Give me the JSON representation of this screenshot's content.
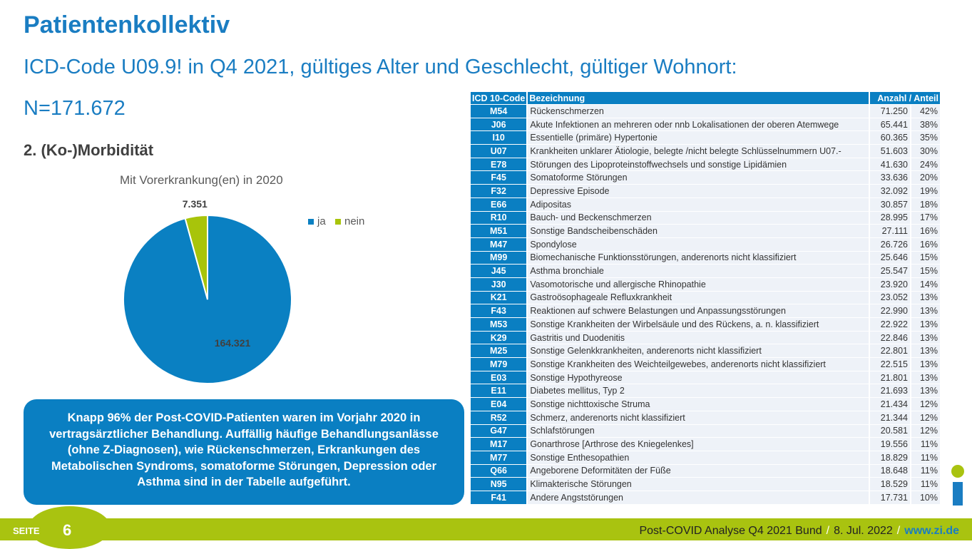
{
  "title": "Patientenkollektiv",
  "subtitle": "ICD-Code U09.9! in Q4 2021, gültiges Alter und Geschlecht, gültiger Wohnort:",
  "n_text": "N=171.672",
  "section": "2. (Ko-)Morbidität",
  "chart_data": {
    "type": "pie",
    "title": "Mit Vorerkrankung(en) in 2020",
    "categories": [
      "ja",
      "nein"
    ],
    "values": [
      164321,
      7351
    ],
    "labels": [
      "164.321",
      "7.351"
    ],
    "colors": [
      "#0a80c2",
      "#a8c40a"
    ],
    "legend": "top-right"
  },
  "table": {
    "headers": [
      "ICD 10-Code",
      "Bezeichnung",
      "Anzahl / Anteil"
    ],
    "rows": [
      [
        "M54",
        "Rückenschmerzen",
        "71.250",
        "42%"
      ],
      [
        "J06",
        "Akute Infektionen an mehreren oder nnb Lokalisationen der oberen Atemwege",
        "65.441",
        "38%"
      ],
      [
        "I10",
        "Essentielle (primäre) Hypertonie",
        "60.365",
        "35%"
      ],
      [
        "U07",
        "Krankheiten unklarer Ätiologie, belegte /nicht belegte Schlüsselnummern U07.-",
        "51.603",
        "30%"
      ],
      [
        "E78",
        "Störungen des Lipoproteinstoffwechsels und sonstige Lipidämien",
        "41.630",
        "24%"
      ],
      [
        "F45",
        "Somatoforme Störungen",
        "33.636",
        "20%"
      ],
      [
        "F32",
        "Depressive Episode",
        "32.092",
        "19%"
      ],
      [
        "E66",
        "Adipositas",
        "30.857",
        "18%"
      ],
      [
        "R10",
        "Bauch- und Beckenschmerzen",
        "28.995",
        "17%"
      ],
      [
        "M51",
        "Sonstige Bandscheibenschäden",
        "27.111",
        "16%"
      ],
      [
        "M47",
        "Spondylose",
        "26.726",
        "16%"
      ],
      [
        "M99",
        "Biomechanische Funktionsstörungen, anderenorts nicht klassifiziert",
        "25.646",
        "15%"
      ],
      [
        "J45",
        "Asthma bronchiale",
        "25.547",
        "15%"
      ],
      [
        "J30",
        "Vasomotorische und allergische Rhinopathie",
        "23.920",
        "14%"
      ],
      [
        "K21",
        "Gastroösophageale Refluxkrankheit",
        "23.052",
        "13%"
      ],
      [
        "F43",
        "Reaktionen auf schwere Belastungen und Anpassungsstörungen",
        "22.990",
        "13%"
      ],
      [
        "M53",
        "Sonstige Krankheiten der Wirbelsäule und des Rückens, a. n. klassifiziert",
        "22.922",
        "13%"
      ],
      [
        "K29",
        "Gastritis und Duodenitis",
        "22.846",
        "13%"
      ],
      [
        "M25",
        "Sonstige Gelenkkrankheiten, anderenorts nicht klassifiziert",
        "22.801",
        "13%"
      ],
      [
        "M79",
        "Sonstige Krankheiten des Weichteilgewebes, anderenorts nicht klassifiziert",
        "22.515",
        "13%"
      ],
      [
        "E03",
        "Sonstige Hypothyreose",
        "21.801",
        "13%"
      ],
      [
        "E11",
        "Diabetes mellitus, Typ 2",
        "21.693",
        "13%"
      ],
      [
        "E04",
        "Sonstige nichttoxische Struma",
        "21.434",
        "12%"
      ],
      [
        "R52",
        "Schmerz, anderenorts nicht klassifiziert",
        "21.344",
        "12%"
      ],
      [
        "G47",
        "Schlafstörungen",
        "20.581",
        "12%"
      ],
      [
        "M17",
        "Gonarthrose [Arthrose des Kniegelenkes]",
        "19.556",
        "11%"
      ],
      [
        "M77",
        "Sonstige Enthesopathien",
        "18.829",
        "11%"
      ],
      [
        "Q66",
        "Angeborene Deformitäten der Füße",
        "18.648",
        "11%"
      ],
      [
        "N95",
        "Klimakterische Störungen",
        "18.529",
        "11%"
      ],
      [
        "F41",
        "Andere Angststörungen",
        "17.731",
        "10%"
      ]
    ]
  },
  "callout": "Knapp 96% der Post-COVID-Patienten waren im Vorjahr 2020 in vertragsärztlicher Behandlung. Auffällig häufige Behandlungsanlässe (ohne Z-Diagnosen), wie Rückenschmerzen, Erkrankungen des Metabolischen Syndroms, somatoforme Störungen, Depression oder Asthma sind in der Tabelle aufgeführt.",
  "footer": {
    "seite": "SEITE",
    "page": "6",
    "report": "Post-COVID Analyse Q4 2021 Bund",
    "sep": "/",
    "date": "8. Jul. 2022",
    "url": "www.zi.de"
  }
}
